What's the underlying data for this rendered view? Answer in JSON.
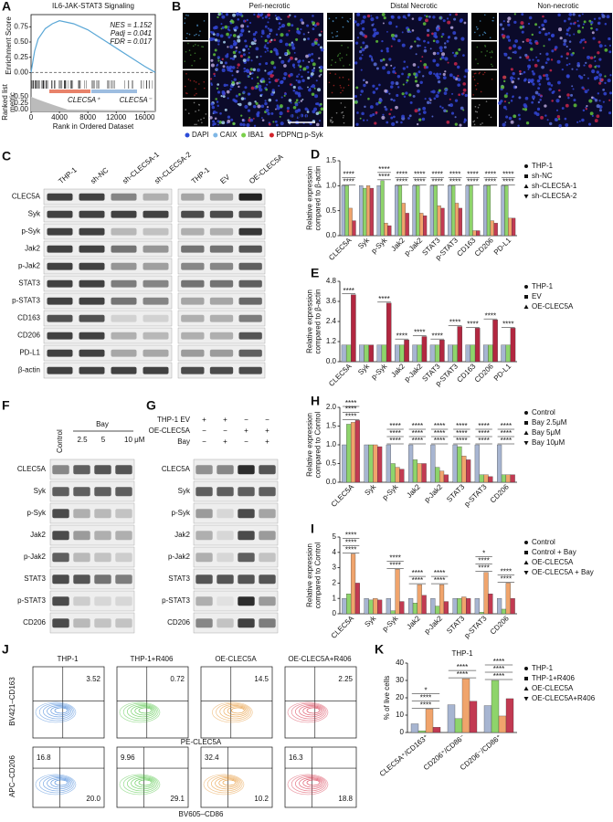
{
  "letters": [
    "A",
    "B",
    "C",
    "D",
    "E",
    "F",
    "G",
    "H",
    "I",
    "J",
    "K"
  ],
  "panels": {
    "B": {
      "headers": [
        "Peri-necrotic",
        "Distal Necrotic",
        "Non-necrotic"
      ],
      "scale": "100 μm",
      "legend": [
        "DAPI",
        "CAIX",
        "IBA1",
        "PDPN",
        "p-Syk"
      ]
    },
    "C": {
      "rows": [
        "CLEC5A",
        "Syk",
        "p-Syk",
        "Jak2",
        "p-Jak2",
        "STAT3",
        "p-STAT3",
        "CD163",
        "CD206",
        "PD-L1",
        "β-actin"
      ],
      "lanes_left": [
        "THP-1",
        "sh-NC",
        "sh-CLEC5A-1",
        "sh-CLEC5A-2"
      ],
      "lanes_right": [
        "THP-1",
        "EV",
        "OE-CLEC5A"
      ]
    },
    "F": {
      "rows": [
        "CLEC5A",
        "Syk",
        "p-Syk",
        "Jak2",
        "p-Jak2",
        "STAT3",
        "p-STAT3",
        "CD206"
      ],
      "control": "Control",
      "group": "Bay",
      "doses": [
        "2.5",
        "5",
        "10 μM"
      ]
    },
    "G": {
      "rows": [
        "CLEC5A",
        "Syk",
        "p-Syk",
        "Jak2",
        "p-Jak2",
        "STAT3",
        "p-STAT3",
        "CD206"
      ],
      "conditions": [
        {
          "label": "THP-1 EV",
          "signs": [
            "+",
            "+",
            "−",
            "−"
          ]
        },
        {
          "label": "OE-CLEC5A",
          "signs": [
            "−",
            "−",
            "+",
            "+"
          ]
        },
        {
          "label": "Bay",
          "signs": [
            "−",
            "+",
            "−",
            "+"
          ]
        }
      ]
    },
    "J": {
      "plots": [
        {
          "title": "THP-1",
          "q_top": "3.52",
          "q_ul": "16.8",
          "q_lr": "20.0"
        },
        {
          "title": "THP-1+R406",
          "q_top": "0.72",
          "q_ul": "9.96",
          "q_lr": "29.1"
        },
        {
          "title": "OE-CLEC5A",
          "q_top": "14.5",
          "q_ul": "32.4",
          "q_lr": "10.2"
        },
        {
          "title": "OE-CLEC5A+R406",
          "q_top": "2.25",
          "q_ul": "16.3",
          "q_lr": "18.8"
        }
      ],
      "top_y": "BV421–CD163",
      "top_x": "PE-CLEC5A",
      "bottom_y": "APC–CD206",
      "bottom_x": "BV605–CD86"
    }
  },
  "chart_data": [
    {
      "type": "line",
      "title": "IL6-JAK-STAT3 Signaling",
      "ylabel": "Enrichment Score",
      "xlabel": "Rank in Ordered Dataset",
      "x": [
        0,
        500,
        1000,
        2000,
        3000,
        4000,
        6000,
        8000,
        10000,
        12000,
        14000,
        16000,
        17500
      ],
      "values": [
        0,
        0.35,
        0.55,
        0.72,
        0.8,
        0.85,
        0.8,
        0.7,
        0.55,
        0.4,
        0.25,
        0.1,
        0
      ],
      "color": "#5aa7d6",
      "xlim": [
        0,
        17500
      ],
      "ylim": [
        -0.1,
        0.95
      ],
      "xticks": [
        0,
        4000,
        8000,
        12000,
        16000
      ],
      "yticks": [
        {
          "value": 0,
          "label": "0.00"
        },
        {
          "value": 0.25,
          "label": "0.25"
        },
        {
          "value": 0.5,
          "label": "0.50"
        },
        {
          "value": 0.75,
          "label": "0.75"
        }
      ],
      "annotations": [
        "NES = 1.152",
        "Padj = 0.041",
        "FDR = 0.017"
      ],
      "metric_label": [
        "Ranked list",
        "metric"
      ],
      "metric_ticks": [
        "0.50",
        "0.25",
        "0.00"
      ],
      "left_tag": "CLEC5A⁺",
      "right_tag": "CLEC5A⁻"
    },
    {
      "type": "bar",
      "ylabel": [
        "Relative expression",
        "compared to β-actin"
      ],
      "categories": [
        "CLEC5A",
        "Syk",
        "p-Syk",
        "Jak2",
        "p-Jak2",
        "STAT3",
        "p-STAT3",
        "CD163",
        "CD206",
        "PD-L1"
      ],
      "series": [
        {
          "name": "THP-1",
          "color": "#a7b5d1",
          "values": [
            1,
            1,
            1,
            1,
            1,
            1,
            1,
            1,
            1,
            1
          ]
        },
        {
          "name": "sh-NC",
          "color": "#8ed46b",
          "values": [
            1,
            0.95,
            1.1,
            1,
            1,
            1,
            1,
            1,
            1,
            1
          ]
        },
        {
          "name": "sh-CLEC5A-1",
          "color": "#f0a46c",
          "values": [
            0.55,
            1,
            0.25,
            0.65,
            0.45,
            0.6,
            0.65,
            0.1,
            0.3,
            0.35
          ]
        },
        {
          "name": "sh-CLEC5A-2",
          "color": "#c23a52",
          "values": [
            0.3,
            0.95,
            0.2,
            0.45,
            0.4,
            0.55,
            0.55,
            0.1,
            0.25,
            0.35
          ]
        }
      ],
      "ylim": [
        0,
        1.5
      ],
      "yticks": [
        {
          "value": 0,
          "label": "0.0"
        },
        {
          "value": 0.5,
          "label": "0.5"
        },
        {
          "value": 1,
          "label": "1.0"
        },
        {
          "value": 1.5,
          "label": "1.5"
        }
      ],
      "annotations": [
        [
          "****",
          "****"
        ],
        null,
        [
          "****",
          "****"
        ],
        [
          "****",
          "****"
        ],
        [
          "****",
          "****"
        ],
        [
          "****",
          "****"
        ],
        [
          "****",
          "****"
        ],
        [
          "****",
          "****"
        ],
        [
          "****",
          "****"
        ],
        [
          "****",
          "****"
        ]
      ]
    },
    {
      "type": "bar",
      "ylabel": [
        "Relative expression",
        "compared to β-actin"
      ],
      "categories": [
        "CLEC5A",
        "Syk",
        "p-Syk",
        "Jak2",
        "p-Jak2",
        "STAT3",
        "p-STAT3",
        "CD163",
        "CD206",
        "PD-L1"
      ],
      "series": [
        {
          "name": "THP-1",
          "color": "#a7b5d1",
          "values": [
            1,
            1,
            1,
            1,
            1,
            1,
            1,
            1,
            1,
            1
          ]
        },
        {
          "name": "EV",
          "color": "#8ed46b",
          "values": [
            1,
            1,
            1,
            1,
            1,
            1,
            1,
            1,
            1,
            1
          ]
        },
        {
          "name": "OE-CLEC5A",
          "color": "#b22740",
          "values": [
            4.0,
            1,
            3.5,
            1.3,
            1.5,
            1.3,
            2.1,
            2.0,
            2.5,
            2.0
          ]
        }
      ],
      "ylim": [
        0,
        4.8
      ],
      "yticks": [
        {
          "value": 0,
          "label": "0.0"
        },
        {
          "value": 1.2,
          "label": "1.2"
        },
        {
          "value": 2.4,
          "label": "2.4"
        },
        {
          "value": 3.6,
          "label": "3.6"
        },
        {
          "value": 4.8,
          "label": "4.8"
        }
      ],
      "annotations": [
        [
          "****"
        ],
        null,
        [
          "****"
        ],
        [
          "****"
        ],
        [
          "****"
        ],
        [
          "****"
        ],
        [
          "****"
        ],
        [
          "****"
        ],
        [
          "****"
        ],
        [
          "****"
        ]
      ]
    },
    {
      "type": "bar",
      "ylabel": [
        "Relative expression",
        "compared to Control"
      ],
      "categories": [
        "CLEC5A",
        "Syk",
        "p-Syk",
        "Jak2",
        "p-Jak2",
        "STAT3",
        "p-STAT3",
        "CD206"
      ],
      "series": [
        {
          "name": "Control",
          "color": "#a7b5d1",
          "values": [
            1,
            1,
            1,
            1,
            1,
            1,
            1,
            1
          ]
        },
        {
          "name": "Bay 2.5μM",
          "color": "#8ed46b",
          "values": [
            1.55,
            1,
            0.5,
            0.6,
            0.4,
            0.95,
            0.2,
            0.2
          ]
        },
        {
          "name": "Bay 5μM",
          "color": "#f0a46c",
          "values": [
            1.6,
            1,
            0.4,
            0.5,
            0.3,
            0.7,
            0.2,
            0.2
          ]
        },
        {
          "name": "Bay 10μM",
          "color": "#c23a52",
          "values": [
            1.65,
            0.95,
            0.35,
            0.5,
            0.2,
            0.6,
            0.15,
            0.2
          ]
        }
      ],
      "ylim": [
        0,
        2
      ],
      "yticks": [
        {
          "value": 0,
          "label": "0.0"
        },
        {
          "value": 0.5,
          "label": "0.5"
        },
        {
          "value": 1,
          "label": "1.0"
        },
        {
          "value": 1.5,
          "label": "1.5"
        },
        {
          "value": 2,
          "label": "2.0"
        }
      ],
      "annotations": [
        [
          "****",
          "****",
          "****"
        ],
        null,
        [
          "****",
          "****",
          "****"
        ],
        [
          "****",
          "****",
          "****"
        ],
        [
          "****",
          "****",
          "****"
        ],
        [
          "****",
          "****",
          "****"
        ],
        [
          "****",
          "****",
          "****"
        ],
        [
          "****",
          "****",
          "****"
        ]
      ]
    },
    {
      "type": "bar",
      "ylabel": [
        "Relative expression",
        "compared to Control"
      ],
      "categories": [
        "CLEC5A",
        "Syk",
        "p-Syk",
        "Jak2",
        "p-Jak2",
        "STAT3",
        "p-STAT3",
        "CD206"
      ],
      "series": [
        {
          "name": "Control",
          "color": "#a7b5d1",
          "values": [
            1,
            1,
            1,
            1,
            1,
            1,
            1,
            1
          ]
        },
        {
          "name": "Control + Bay",
          "color": "#8ed46b",
          "values": [
            1.3,
            0.9,
            0.2,
            0.7,
            0.5,
            1,
            0.1,
            0.3
          ]
        },
        {
          "name": "OE-CLEC5A",
          "color": "#f0a46c",
          "values": [
            3.9,
            1,
            2.9,
            1.9,
            1.9,
            1.1,
            2.7,
            2.0
          ]
        },
        {
          "name": "OE-CLEC5A + Bay",
          "color": "#c23a52",
          "values": [
            2.0,
            0.9,
            0.8,
            1.2,
            0.8,
            1,
            1.3,
            1.0
          ]
        }
      ],
      "ylim": [
        0,
        5
      ],
      "yticks": [
        0,
        1,
        2,
        3,
        4,
        5
      ],
      "annotations": [
        [
          "****",
          "****",
          "****"
        ],
        null,
        [
          "****",
          "****"
        ],
        [
          "****",
          "****"
        ],
        [
          "****",
          "****"
        ],
        null,
        [
          "*",
          "****",
          "****"
        ],
        [
          "****",
          "****"
        ]
      ]
    },
    {
      "type": "bar",
      "title": "THP-1",
      "ylabel": [
        "% of live cells"
      ],
      "categories": [
        "CLEC5A⁺/CD163⁺",
        "CD206⁺/CD86⁻",
        "CD206⁻/CD86⁺"
      ],
      "series": [
        {
          "name": "THP-1",
          "color": "#a7b5d1",
          "values": [
            5,
            16,
            15.5
          ]
        },
        {
          "name": "THP-1+R406",
          "color": "#8ed46b",
          "values": [
            1,
            8,
            30
          ]
        },
        {
          "name": "OE-CLEC5A",
          "color": "#f0a46c",
          "values": [
            13.5,
            31,
            9.5
          ]
        },
        {
          "name": "OE-CLEC5A+R406",
          "color": "#c23a52",
          "values": [
            3,
            18,
            19.5
          ]
        }
      ],
      "ylim": [
        0,
        40
      ],
      "yticks": [
        0,
        10,
        20,
        30,
        40
      ],
      "annotations": [
        [
          "*",
          "****",
          "****"
        ],
        [
          "****",
          "****"
        ],
        [
          "****",
          "****",
          "****"
        ]
      ]
    }
  ]
}
